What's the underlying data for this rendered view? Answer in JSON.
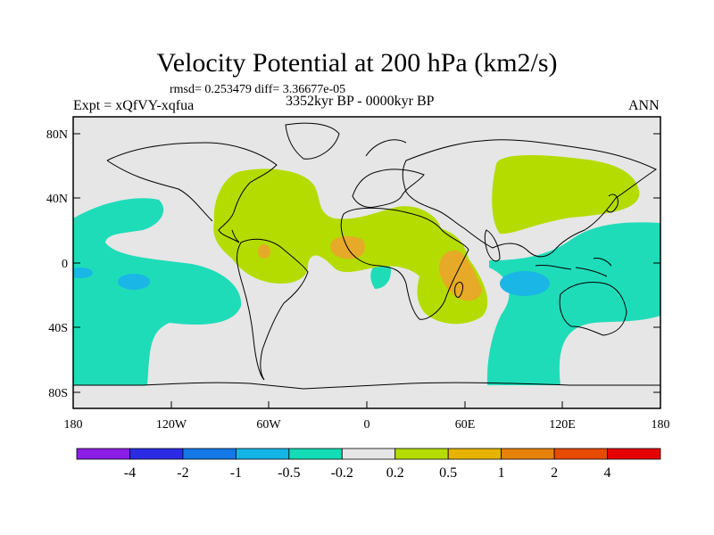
{
  "title": "Velocity Potential at 200 hPa (km2/s)",
  "stats_line": "rmsd= 0.253479  diff= 3.36677e-05",
  "experiment": "Expt = xQfVY-xqfua",
  "period": "3352kyr BP - 0000kyr BP",
  "season": "ANN",
  "lat_labels": [
    "80N",
    "40N",
    "0",
    "40S",
    "80S"
  ],
  "lon_labels": [
    "180",
    "120W",
    "60W",
    "0",
    "60E",
    "120E",
    "180"
  ],
  "colorbar": {
    "colors": [
      "#8a1ee6",
      "#2b2be6",
      "#1478e6",
      "#14b4e6",
      "#14dcb4",
      "#e6e6e6",
      "#b4dc00",
      "#e6b400",
      "#e6820a",
      "#e64b00",
      "#e60000"
    ],
    "labels": [
      "-4",
      "-2",
      "-1",
      "-0.5",
      "-0.2",
      "0.2",
      "0.5",
      "1",
      "2",
      "4"
    ]
  },
  "colors": {
    "background": "#e6e6e6",
    "negative_weak": "#1fdcb9",
    "negative_mid": "#19b6e6",
    "positive_weak": "#b4dc00",
    "positive_mid": "#e6aa28"
  }
}
